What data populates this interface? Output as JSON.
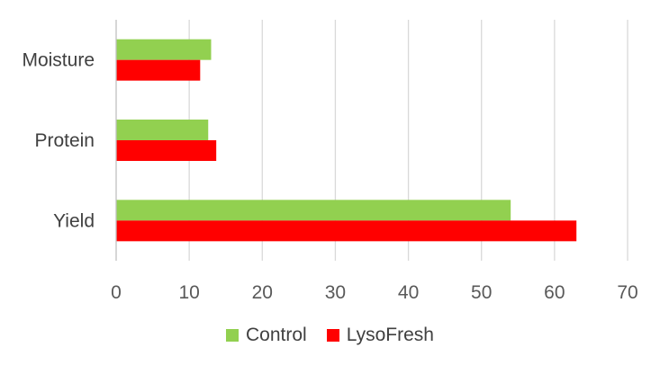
{
  "chart_data": {
    "type": "bar",
    "orientation": "horizontal",
    "categories": [
      "Moisture",
      "Protein",
      "Yield"
    ],
    "series": [
      {
        "name": "Control",
        "color": "#92d050",
        "values": [
          13,
          12.6,
          54
        ]
      },
      {
        "name": "LysoFresh",
        "color": "#ff0000",
        "values": [
          11.5,
          13.7,
          63
        ]
      }
    ],
    "xlim": [
      0,
      70
    ],
    "xticks": [
      "0",
      "10",
      "20",
      "30",
      "40",
      "50",
      "60",
      "70"
    ],
    "grid": true,
    "legend_position": "bottom"
  }
}
